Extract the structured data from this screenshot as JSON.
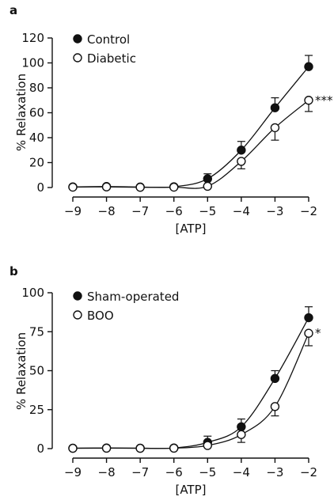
{
  "chart_data": [
    {
      "type": "line",
      "panel_label": "a",
      "xlabel": "[ATP]",
      "ylabel": "% Relaxation",
      "x": [
        -9,
        -8,
        -7,
        -6,
        -5,
        -4,
        -3,
        -2
      ],
      "xlim": [
        -9,
        -2
      ],
      "ylim": [
        0,
        120
      ],
      "yticks": [
        0,
        20,
        40,
        60,
        80,
        100,
        120
      ],
      "xticks": [
        -9,
        -8,
        -7,
        -6,
        -5,
        -4,
        -3,
        -2
      ],
      "xtick_labels": [
        "−9",
        "−8",
        "−7",
        "−6",
        "−5",
        "−4",
        "−3",
        "−2"
      ],
      "ytick_labels": [
        "0",
        "20",
        "40",
        "60",
        "80",
        "100",
        "120"
      ],
      "series": [
        {
          "name": "Control",
          "marker": "filled-circle",
          "color": "#111111",
          "values": [
            0.5,
            0.8,
            0.4,
            0.6,
            7,
            30,
            64,
            97
          ],
          "error_up": [
            0,
            0,
            0,
            0,
            4,
            7,
            8,
            9
          ]
        },
        {
          "name": "Diabetic",
          "marker": "open-circle",
          "color": "#111111",
          "values": [
            0.3,
            0.5,
            0.2,
            0.3,
            1,
            21,
            48,
            70
          ],
          "error_up": [
            0,
            0,
            0,
            0,
            0,
            0,
            0,
            0
          ],
          "error_down": [
            0,
            0,
            0,
            0,
            0,
            6,
            10,
            9
          ],
          "annotation": "***"
        }
      ],
      "legend": "top-left",
      "grid": false
    },
    {
      "type": "line",
      "panel_label": "b",
      "xlabel": "[ATP]",
      "ylabel": "% Relaxation",
      "x": [
        -9,
        -8,
        -7,
        -6,
        -5,
        -4,
        -3,
        -2
      ],
      "xlim": [
        -9,
        -2
      ],
      "ylim": [
        0,
        100
      ],
      "yticks": [
        0,
        25,
        50,
        75,
        100
      ],
      "xticks": [
        -9,
        -8,
        -7,
        -6,
        -5,
        -4,
        -3,
        -2
      ],
      "xtick_labels": [
        "−9",
        "−8",
        "−7",
        "−6",
        "−5",
        "−4",
        "−3",
        "−2"
      ],
      "ytick_labels": [
        "0",
        "25",
        "50",
        "75",
        "100"
      ],
      "series": [
        {
          "name": "Sham-operated",
          "marker": "filled-circle",
          "color": "#111111",
          "values": [
            0.3,
            0.4,
            0.3,
            0.4,
            4,
            14,
            45,
            84
          ],
          "error_up": [
            0,
            0,
            0,
            0,
            4,
            5,
            5,
            7
          ]
        },
        {
          "name": "BOO",
          "marker": "open-circle",
          "color": "#111111",
          "values": [
            0.2,
            0.3,
            0.2,
            0.3,
            2,
            9,
            27,
            74
          ],
          "error_up": [
            0,
            0,
            0,
            0,
            0,
            0,
            0,
            0
          ],
          "error_down": [
            0,
            0,
            0,
            0,
            0,
            5,
            6,
            8
          ],
          "annotation": "*"
        }
      ],
      "legend": "top-left",
      "grid": false
    }
  ]
}
